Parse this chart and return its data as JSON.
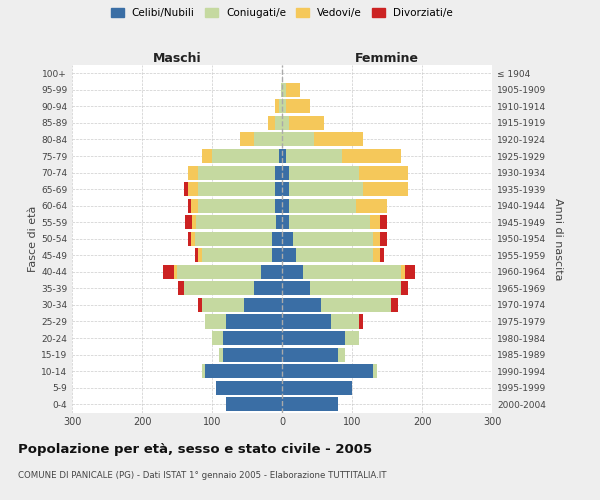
{
  "age_groups": [
    "0-4",
    "5-9",
    "10-14",
    "15-19",
    "20-24",
    "25-29",
    "30-34",
    "35-39",
    "40-44",
    "45-49",
    "50-54",
    "55-59",
    "60-64",
    "65-69",
    "70-74",
    "75-79",
    "80-84",
    "85-89",
    "90-94",
    "95-99",
    "100+"
  ],
  "birth_years": [
    "2000-2004",
    "1995-1999",
    "1990-1994",
    "1985-1989",
    "1980-1984",
    "1975-1979",
    "1970-1974",
    "1965-1969",
    "1960-1964",
    "1955-1959",
    "1950-1954",
    "1945-1949",
    "1940-1944",
    "1935-1939",
    "1930-1934",
    "1925-1929",
    "1920-1924",
    "1915-1919",
    "1910-1914",
    "1905-1909",
    "≤ 1904"
  ],
  "maschi": {
    "celibi": [
      80,
      95,
      110,
      85,
      85,
      80,
      55,
      40,
      30,
      15,
      15,
      8,
      10,
      10,
      10,
      5,
      0,
      0,
      0,
      0,
      0
    ],
    "coniugati": [
      0,
      0,
      5,
      5,
      15,
      30,
      60,
      100,
      120,
      100,
      110,
      115,
      110,
      110,
      110,
      95,
      40,
      10,
      5,
      2,
      0
    ],
    "vedovi": [
      0,
      0,
      0,
      0,
      0,
      0,
      0,
      0,
      5,
      5,
      5,
      5,
      10,
      15,
      15,
      15,
      20,
      10,
      5,
      0,
      0
    ],
    "divorziati": [
      0,
      0,
      0,
      0,
      0,
      0,
      5,
      8,
      15,
      5,
      5,
      10,
      5,
      5,
      0,
      0,
      0,
      0,
      0,
      0,
      0
    ]
  },
  "femmine": {
    "nubili": [
      80,
      100,
      130,
      80,
      90,
      70,
      55,
      40,
      30,
      20,
      15,
      10,
      10,
      10,
      10,
      5,
      0,
      0,
      0,
      0,
      0
    ],
    "coniugate": [
      0,
      0,
      5,
      10,
      20,
      40,
      100,
      130,
      140,
      110,
      115,
      115,
      95,
      105,
      100,
      80,
      45,
      10,
      5,
      5,
      0
    ],
    "vedove": [
      0,
      0,
      0,
      0,
      0,
      0,
      0,
      0,
      5,
      10,
      10,
      15,
      45,
      65,
      70,
      85,
      70,
      50,
      35,
      20,
      0
    ],
    "divorziate": [
      0,
      0,
      0,
      0,
      0,
      5,
      10,
      10,
      15,
      5,
      10,
      10,
      0,
      0,
      0,
      0,
      0,
      0,
      0,
      0,
      0
    ]
  },
  "colors": {
    "celibi_nubili": "#3A6EA5",
    "coniugati": "#C5D9A0",
    "vedovi": "#F5C85A",
    "divorziati": "#CC2222"
  },
  "xlim": 300,
  "title": "Popolazione per età, sesso e stato civile - 2005",
  "subtitle": "COMUNE DI PANICALE (PG) - Dati ISTAT 1° gennaio 2005 - Elaborazione TUTTITALIA.IT",
  "ylabel_left": "Fasce di età",
  "ylabel_right": "Anni di nascita",
  "xlabel_left": "Maschi",
  "xlabel_right": "Femmine",
  "background_color": "#eeeeee",
  "plot_bg_color": "#ffffff"
}
